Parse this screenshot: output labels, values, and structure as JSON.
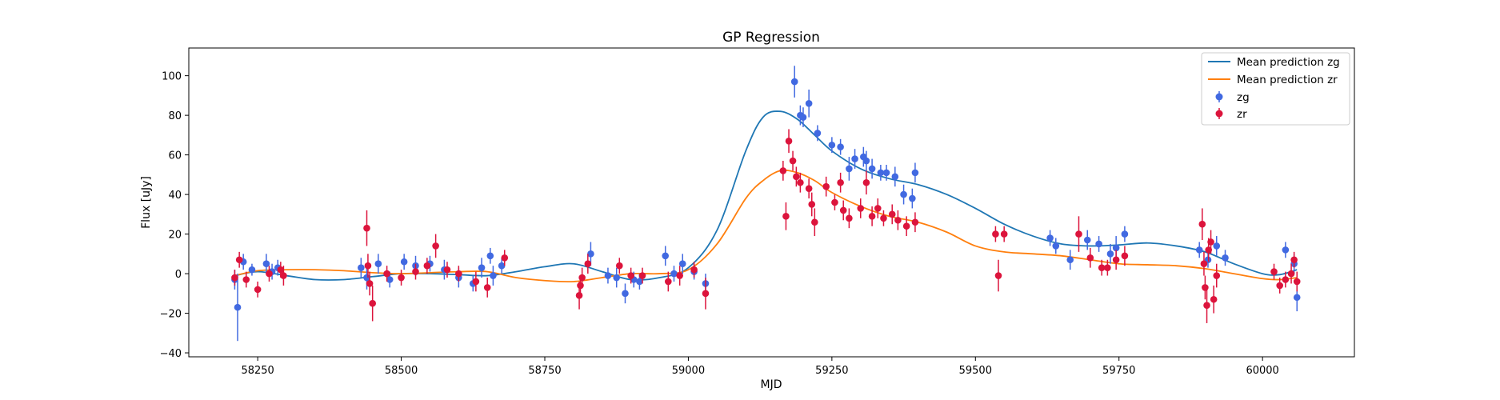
{
  "chart_data": {
    "type": "scatter",
    "title": "GP Regression",
    "xlabel": "MJD",
    "ylabel": "Flux [uJy]",
    "xlim": [
      58130,
      60160
    ],
    "ylim": [
      -42,
      114
    ],
    "xticks": [
      58250,
      58500,
      58750,
      59000,
      59250,
      59500,
      59750,
      60000
    ],
    "yticks": [
      -40,
      -20,
      0,
      20,
      40,
      60,
      80,
      100
    ],
    "grid": false,
    "legend_position": "top-right",
    "legend": [
      "Mean prediction zg",
      "Mean prediction zr",
      "zg",
      "zr"
    ],
    "series": [
      {
        "name": "Mean prediction zg",
        "kind": "line",
        "color": "#1f77b4",
        "x": [
          58210,
          58250,
          58300,
          58350,
          58400,
          58450,
          58500,
          58550,
          58600,
          58650,
          58700,
          58750,
          58800,
          58850,
          58900,
          58950,
          59000,
          59050,
          59100,
          59130,
          59160,
          59190,
          59220,
          59250,
          59300,
          59350,
          59400,
          59450,
          59500,
          59550,
          59600,
          59650,
          59700,
          59750,
          59800,
          59850,
          59900,
          59950,
          60000,
          60030,
          60060
        ],
        "y": [
          -1,
          1,
          -1,
          -3,
          -3,
          -1.5,
          0,
          0,
          -0.5,
          -1,
          1,
          3.5,
          5,
          1,
          -3,
          -2,
          3,
          22,
          62,
          79,
          82,
          78,
          70,
          62,
          53,
          48,
          45,
          40,
          33,
          25,
          19,
          15,
          14,
          14.5,
          15.5,
          14,
          11,
          5,
          0,
          -0.5,
          2
        ]
      },
      {
        "name": "Mean prediction zr",
        "kind": "line",
        "color": "#ff7f0e",
        "x": [
          58210,
          58250,
          58300,
          58350,
          58400,
          58450,
          58500,
          58550,
          58600,
          58650,
          58700,
          58750,
          58800,
          58850,
          58900,
          58950,
          59000,
          59050,
          59100,
          59130,
          59160,
          59190,
          59220,
          59250,
          59300,
          59350,
          59400,
          59450,
          59500,
          59550,
          59600,
          59650,
          59700,
          59750,
          59800,
          59850,
          59900,
          59950,
          60000,
          60030,
          60060
        ],
        "y": [
          -1,
          1.5,
          2,
          2,
          1.5,
          0.5,
          0,
          0.5,
          1,
          1,
          -2,
          -3.5,
          -4,
          -2,
          0,
          0,
          2,
          15,
          38,
          47,
          52,
          51,
          47,
          41,
          34,
          29,
          26,
          21,
          14,
          11,
          10,
          9,
          7,
          5,
          4.5,
          4,
          2.5,
          0,
          -2.5,
          -3,
          -2
        ]
      },
      {
        "name": "zg",
        "kind": "points",
        "color": "#4169e1",
        "x": [
          58210,
          58215,
          58225,
          58240,
          58265,
          58275,
          58285,
          58430,
          58440,
          58460,
          58480,
          58505,
          58525,
          58550,
          58575,
          58600,
          58625,
          58640,
          58655,
          58660,
          58675,
          58830,
          58860,
          58875,
          58890,
          58905,
          58915,
          58960,
          58975,
          58990,
          59010,
          59030,
          59185,
          59195,
          59200,
          59210,
          59225,
          59250,
          59265,
          59280,
          59290,
          59305,
          59310,
          59320,
          59335,
          59345,
          59360,
          59375,
          59390,
          59395,
          59630,
          59640,
          59665,
          59695,
          59715,
          59735,
          59745,
          59760,
          59890,
          59905,
          59920,
          59935,
          60040,
          60055,
          60060
        ],
        "y": [
          -3,
          -17,
          6,
          2,
          5,
          1,
          3,
          3,
          -2,
          5,
          -3,
          6,
          4,
          5,
          2,
          -2,
          -5,
          3,
          9,
          -1,
          4,
          10,
          -1,
          -2,
          -10,
          -3,
          -4,
          9,
          0,
          5,
          1,
          -5,
          97,
          80,
          79,
          86,
          71,
          65,
          64,
          53,
          58,
          59,
          57,
          53,
          51,
          51,
          49,
          40,
          38,
          51,
          18,
          14,
          7,
          17,
          15,
          10,
          13,
          20,
          12,
          7,
          14,
          8,
          12,
          5,
          -12
        ],
        "err": [
          5,
          17,
          4,
          3,
          5,
          4,
          4,
          5,
          6,
          5,
          4,
          4,
          5,
          4,
          5,
          5,
          4,
          5,
          4,
          5,
          4,
          6,
          4,
          5,
          5,
          4,
          4,
          5,
          4,
          5,
          4,
          5,
          8,
          5,
          5,
          7,
          4,
          4,
          4,
          6,
          5,
          5,
          5,
          5,
          4,
          4,
          5,
          5,
          5,
          5,
          4,
          4,
          5,
          5,
          4,
          5,
          6,
          4,
          4,
          4,
          5,
          4,
          4,
          5,
          7
        ]
      },
      {
        "name": "zr",
        "kind": "points",
        "color": "#dc143c",
        "x": [
          58210,
          58218,
          58230,
          58250,
          58270,
          58290,
          58295,
          58440,
          58442,
          58445,
          58450,
          58475,
          58500,
          58525,
          58545,
          58560,
          58580,
          58600,
          58630,
          58650,
          58680,
          58810,
          58812,
          58815,
          58825,
          58880,
          58900,
          58920,
          58965,
          58985,
          59010,
          59030,
          59165,
          59170,
          59175,
          59182,
          59188,
          59195,
          59210,
          59215,
          59220,
          59240,
          59255,
          59265,
          59270,
          59280,
          59300,
          59310,
          59320,
          59330,
          59340,
          59355,
          59365,
          59380,
          59395,
          59535,
          59540,
          59550,
          59680,
          59700,
          59720,
          59730,
          59745,
          59760,
          59895,
          59898,
          59900,
          59903,
          59906,
          59910,
          59915,
          59920,
          60020,
          60030,
          60040,
          60050,
          60055,
          60060
        ],
        "y": [
          -2,
          7,
          -3,
          -8,
          0,
          2,
          -1,
          23,
          4,
          -5,
          -15,
          0,
          -2,
          1,
          4,
          14,
          2,
          0,
          -4,
          -7,
          8,
          -11,
          -6,
          -2,
          5,
          4,
          -1,
          -1,
          -4,
          -1,
          2,
          -10,
          52,
          29,
          67,
          57,
          49,
          46,
          43,
          35,
          26,
          44,
          36,
          46,
          32,
          28,
          33,
          46,
          29,
          33,
          28,
          30,
          27,
          24,
          26,
          20,
          -1,
          20,
          20,
          8,
          3,
          3,
          7,
          9,
          25,
          5,
          -7,
          -16,
          12,
          16,
          -13,
          -1,
          1,
          -6,
          -3,
          0,
          7,
          -4
        ],
        "err": [
          4,
          4,
          4,
          4,
          4,
          4,
          5,
          9,
          6,
          6,
          9,
          4,
          4,
          4,
          4,
          6,
          4,
          4,
          5,
          5,
          4,
          7,
          5,
          5,
          5,
          4,
          4,
          4,
          5,
          5,
          4,
          8,
          5,
          7,
          6,
          5,
          5,
          5,
          5,
          6,
          7,
          5,
          4,
          5,
          5,
          5,
          5,
          6,
          5,
          5,
          4,
          5,
          5,
          5,
          5,
          4,
          8,
          4,
          9,
          5,
          4,
          4,
          5,
          5,
          8,
          6,
          6,
          9,
          6,
          6,
          7,
          6,
          4,
          4,
          4,
          5,
          4,
          5
        ]
      }
    ]
  }
}
